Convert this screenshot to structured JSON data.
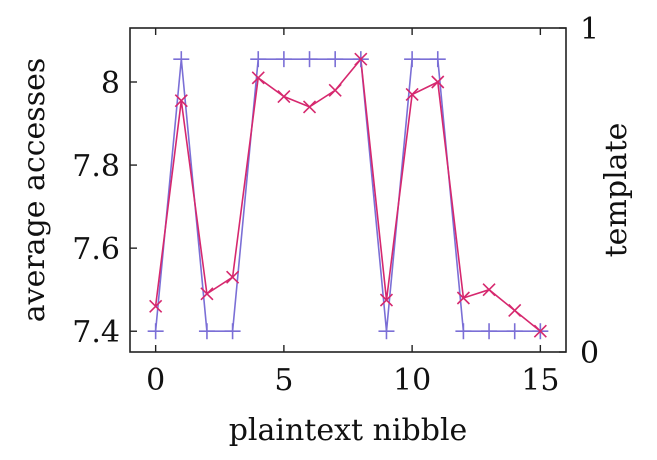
{
  "chart_data": {
    "type": "line",
    "xlabel": "plaintext nibble",
    "ylabel_left": "average accesses",
    "ylabel_right": "template",
    "x": [
      0,
      1,
      2,
      3,
      4,
      5,
      6,
      7,
      8,
      9,
      10,
      11,
      12,
      13,
      14,
      15
    ],
    "xlim": [
      -1,
      16
    ],
    "ylim_left": [
      7.35,
      8.13
    ],
    "ylim_right": [
      0,
      1
    ],
    "xticks": [
      0,
      5,
      10,
      15
    ],
    "xtick_labels": [
      "0",
      "5",
      "10",
      "15"
    ],
    "yticks_left": [
      7.4,
      7.6,
      7.8,
      8
    ],
    "ytick_labels_left": [
      "7.4",
      "7.6",
      "7.8",
      "8"
    ],
    "yticks_right": [
      0,
      1
    ],
    "ytick_labels_right": [
      "0",
      "1"
    ],
    "series": [
      {
        "axis": "left",
        "marker": "x",
        "color": "#d6286e",
        "values": [
          7.46,
          7.955,
          7.49,
          7.53,
          8.01,
          7.965,
          7.94,
          7.98,
          8.055,
          7.475,
          7.97,
          8.0,
          7.48,
          7.5,
          7.45,
          7.4
        ]
      },
      {
        "axis": "left",
        "marker": "+",
        "color": "#7b6fd6",
        "values": [
          7.4,
          8.055,
          7.4,
          7.4,
          8.055,
          8.055,
          8.055,
          8.055,
          8.055,
          7.4,
          8.055,
          8.055,
          7.4,
          7.4,
          7.4,
          7.4
        ]
      }
    ],
    "grid": false,
    "legend": "none"
  }
}
